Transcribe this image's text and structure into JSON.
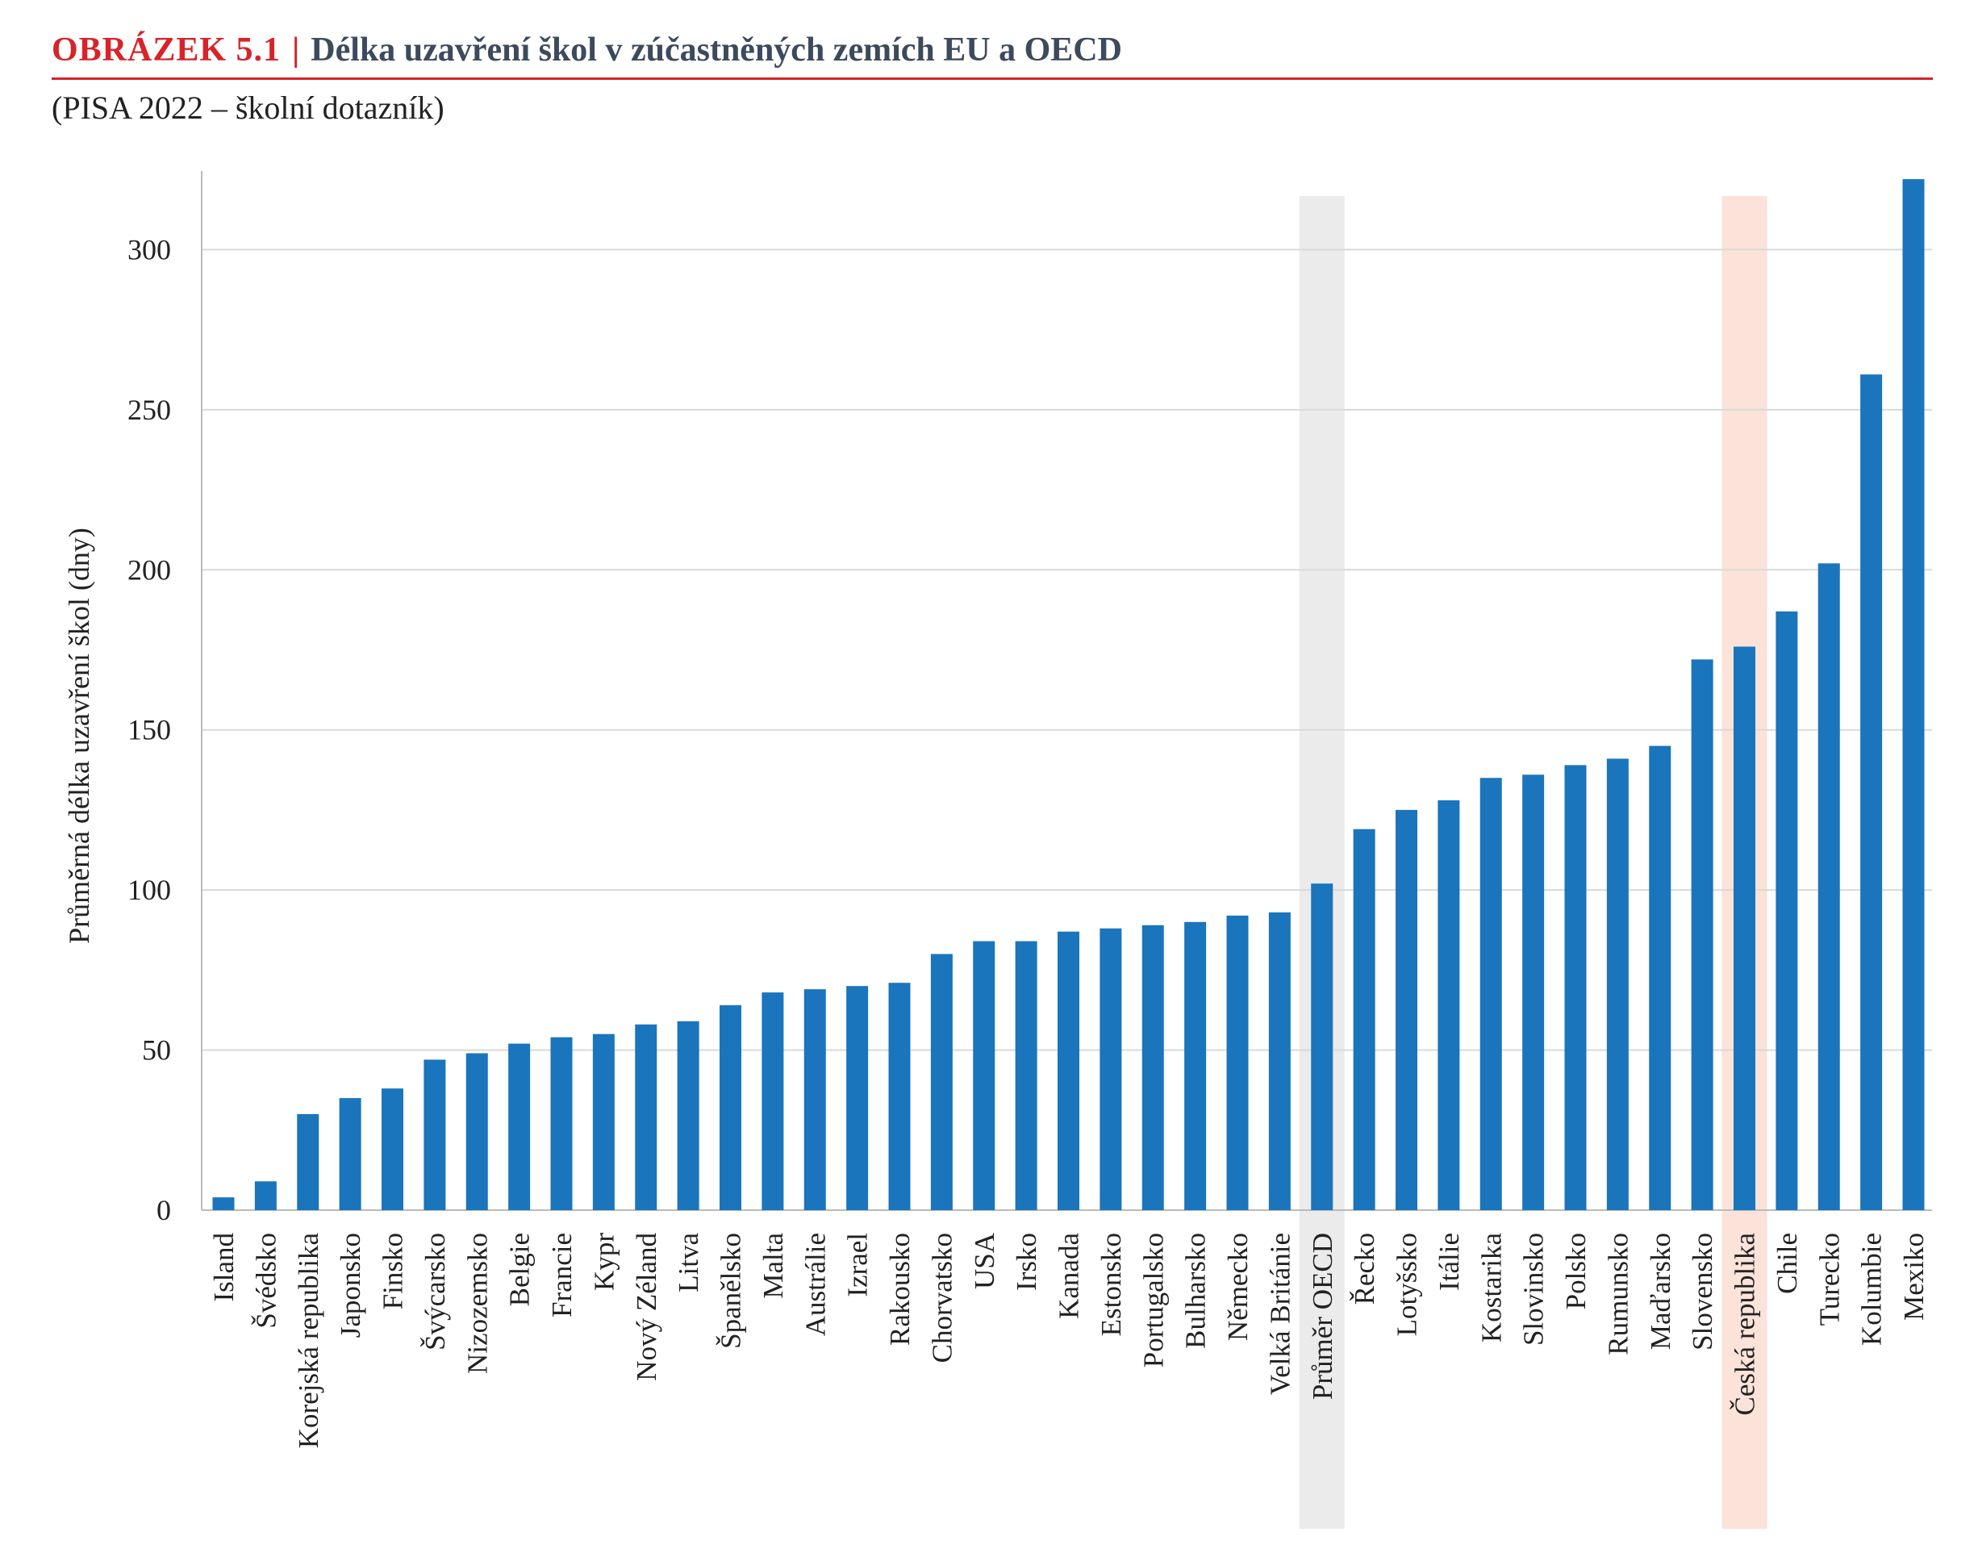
{
  "figure": {
    "label": "OBRÁZEK 5.1",
    "separator": "|",
    "title": "Délka uzavření škol v zúčastněných zemích EU a OECD",
    "subtitle": "(PISA 2022 – školní dotazník)"
  },
  "colors": {
    "bar": "#1a75bc",
    "grid": "#d9d9d9",
    "axis": "#bbbbbb",
    "highlight_average": "#ebebeb",
    "highlight_country": "#fbe3da",
    "accent": "#d8232a"
  },
  "chart_data": {
    "type": "bar",
    "ylabel": "Průměrná délka uzavření škol (dny)",
    "xlabel": "",
    "ylim": [
      0,
      320
    ],
    "yticks": [
      0,
      50,
      100,
      150,
      200,
      250,
      300
    ],
    "grid": true,
    "highlighted": {
      "Průměr OECD": "highlight_average",
      "Česká republika": "highlight_country"
    },
    "categories": [
      "Island",
      "Švédsko",
      "Korejská republika",
      "Japonsko",
      "Finsko",
      "Švýcarsko",
      "Nizozemsko",
      "Belgie",
      "Francie",
      "Kypr",
      "Nový Zéland",
      "Litva",
      "Španělsko",
      "Malta",
      "Austrálie",
      "Izrael",
      "Rakousko",
      "Chorvatsko",
      "USA",
      "Irsko",
      "Kanada",
      "Estonsko",
      "Portugalsko",
      "Bulharsko",
      "Německo",
      "Velká Británie",
      "Průměr OECD",
      "Řecko",
      "Lotyšsko",
      "Itálie",
      "Kostarika",
      "Slovinsko",
      "Polsko",
      "Rumunsko",
      "Maďarsko",
      "Slovensko",
      "Česká republika",
      "Chile",
      "Turecko",
      "Kolumbie",
      "Mexiko"
    ],
    "values": [
      4,
      9,
      30,
      35,
      38,
      47,
      49,
      52,
      54,
      55,
      58,
      59,
      64,
      68,
      69,
      70,
      71,
      80,
      84,
      84,
      87,
      88,
      89,
      90,
      92,
      93,
      102,
      119,
      125,
      128,
      135,
      136,
      139,
      141,
      145,
      172,
      176,
      187,
      202,
      261,
      322
    ]
  }
}
